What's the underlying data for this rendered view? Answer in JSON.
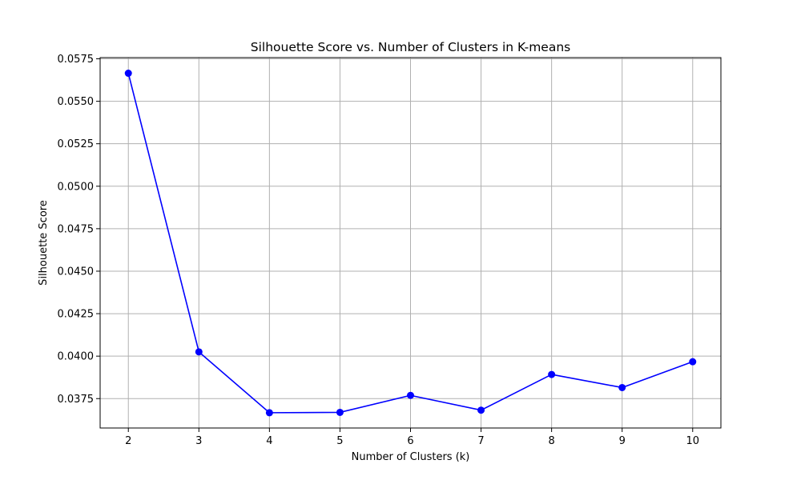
{
  "chart_data": {
    "type": "line",
    "title": "Silhouette Score vs. Number of Clusters in K-means",
    "xlabel": "Number of Clusters (k)",
    "ylabel": "Silhouette Score",
    "x": [
      2,
      3,
      4,
      5,
      6,
      7,
      8,
      9,
      10
    ],
    "series": [
      {
        "values": [
          0.05665,
          0.04025,
          0.03667,
          0.03669,
          0.03769,
          0.03682,
          0.03892,
          0.03815,
          0.03967
        ],
        "color": "#0000ff",
        "marker": "circle"
      }
    ],
    "xticks": [
      "2",
      "3",
      "4",
      "5",
      "6",
      "7",
      "8",
      "9",
      "10"
    ],
    "yticks": [
      "0.0375",
      "0.0400",
      "0.0425",
      "0.0450",
      "0.0475",
      "0.0500",
      "0.0525",
      "0.0550",
      "0.0575"
    ],
    "xlim": [
      1.6,
      10.4
    ],
    "ylim": [
      0.03577,
      0.05757
    ],
    "grid": true,
    "colors": {
      "grid": "#b0b0b0",
      "axes": "#000000",
      "line": "#0000ff"
    }
  }
}
